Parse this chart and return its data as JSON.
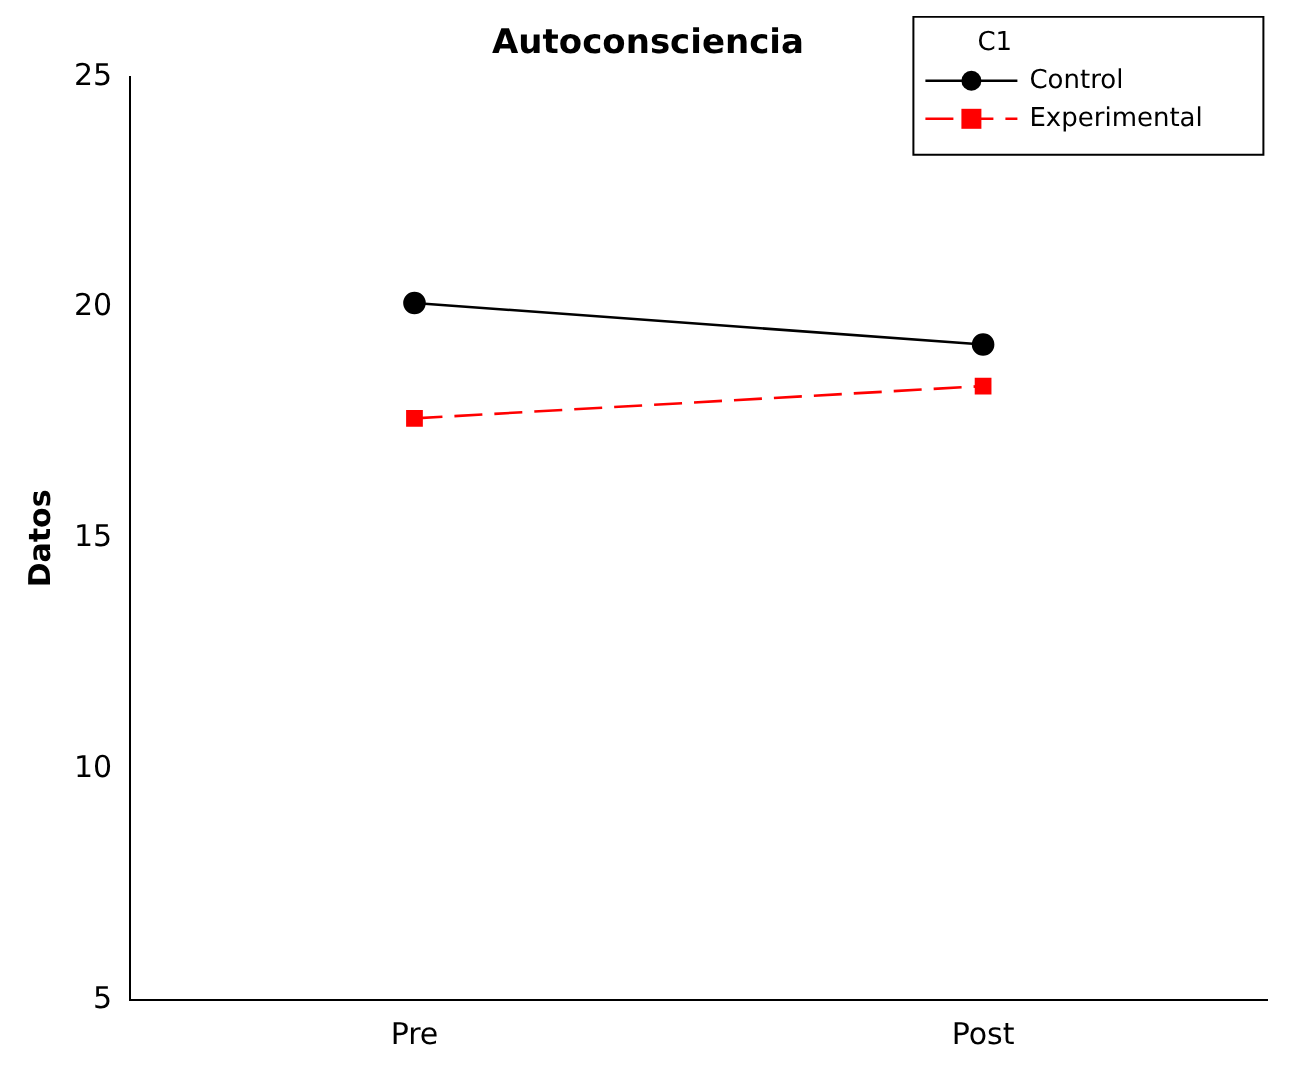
{
  "chart_data": {
    "type": "line",
    "title": "Autoconsciencia",
    "ylabel": "Datos",
    "legend_title": "C1",
    "legend": "top right",
    "grid": false,
    "categories": [
      "Pre",
      "Post"
    ],
    "ylim": [
      5,
      25
    ],
    "yticks": [
      5,
      10,
      15,
      20,
      25
    ],
    "series": [
      {
        "name": "Control",
        "color": "#000000",
        "values": [
          20.1,
          19.2
        ],
        "marker": "circle",
        "line_style": "solid"
      },
      {
        "name": "Experimental",
        "color": "#ff0000",
        "values": [
          17.6,
          18.3
        ],
        "marker": "square",
        "line_style": "dashed"
      }
    ]
  }
}
